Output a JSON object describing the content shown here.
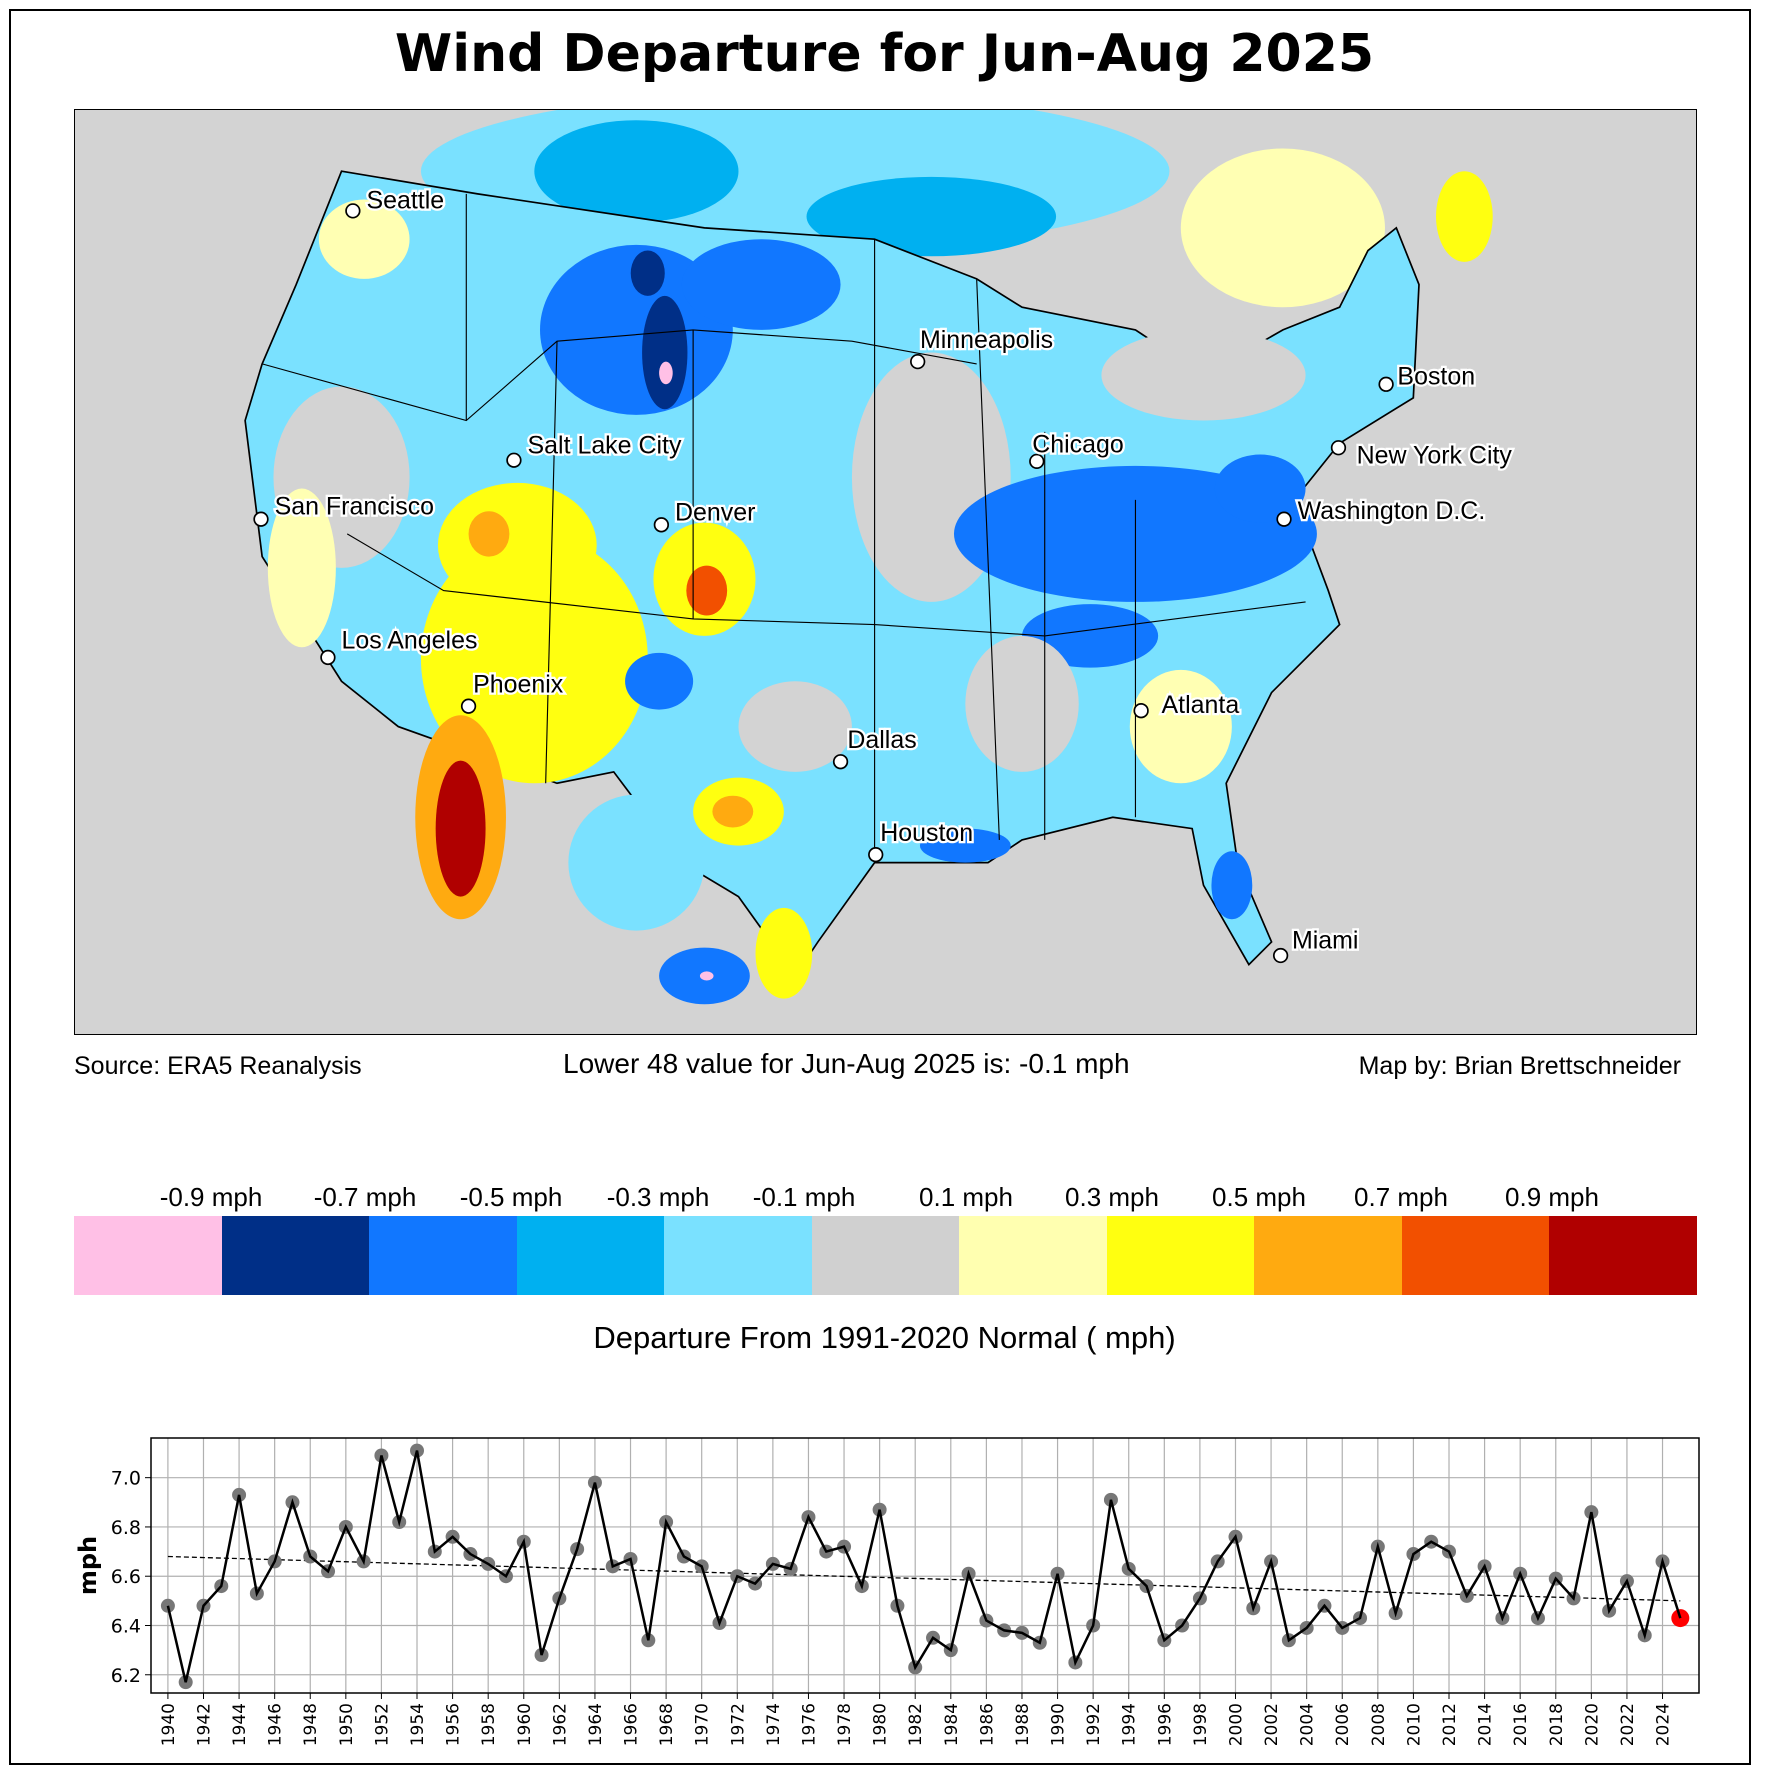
{
  "title": "Wind Departure for Jun-Aug 2025",
  "footer": {
    "source": "Source: ERA5 Reanalysis",
    "summary": "Lower 48 value for Jun-Aug 2025 is: -0.1 mph",
    "credit": "Map by: Brian Brettschneider"
  },
  "cities": [
    "Seattle",
    "San Francisco",
    "Los Angeles",
    "Phoenix",
    "Salt Lake City",
    "Denver",
    "Minneapolis",
    "Chicago",
    "Dallas",
    "Houston",
    "Atlanta",
    "Miami",
    "Washington D.C.",
    "New York City",
    "Boston"
  ],
  "colorbar": {
    "labels": [
      "-0.9 mph",
      "-0.7 mph",
      "-0.5 mph",
      "-0.3 mph",
      "-0.1 mph",
      "0.1 mph",
      "0.3 mph",
      "0.5 mph",
      "0.7 mph",
      "0.9 mph"
    ],
    "colors": [
      "#ffc0e6",
      "#002f87",
      "#1177ff",
      "#00b0f0",
      "#7ae1ff",
      "#d0d0d0",
      "#ffffb0",
      "#ffff10",
      "#ffaa10",
      "#f25000",
      "#b00000"
    ],
    "title": "Departure From 1991-2020 Normal ( mph)"
  },
  "chart_data": {
    "type": "line",
    "title": "",
    "xlabel": "",
    "ylabel": "mph",
    "xlim": [
      1939.05,
      2026.05
    ],
    "ylim": [
      6.126,
      7.161
    ],
    "yticks": [
      "6.2",
      "6.4",
      "6.6",
      "6.8",
      "7.0"
    ],
    "grid": true,
    "x": [
      1940,
      1941,
      1942,
      1943,
      1944,
      1945,
      1946,
      1947,
      1948,
      1949,
      1950,
      1951,
      1952,
      1953,
      1954,
      1955,
      1956,
      1957,
      1958,
      1959,
      1960,
      1961,
      1962,
      1963,
      1964,
      1965,
      1966,
      1967,
      1968,
      1969,
      1970,
      1971,
      1972,
      1973,
      1974,
      1975,
      1976,
      1977,
      1978,
      1979,
      1980,
      1981,
      1982,
      1983,
      1984,
      1985,
      1986,
      1987,
      1988,
      1989,
      1990,
      1991,
      1992,
      1993,
      1994,
      1995,
      1996,
      1997,
      1998,
      1999,
      2000,
      2001,
      2002,
      2003,
      2004,
      2005,
      2006,
      2007,
      2008,
      2009,
      2010,
      2011,
      2012,
      2013,
      2014,
      2015,
      2016,
      2017,
      2018,
      2019,
      2020,
      2021,
      2022,
      2023,
      2024,
      2025
    ],
    "values": [
      6.48,
      6.17,
      6.48,
      6.56,
      6.93,
      6.53,
      6.66,
      6.9,
      6.68,
      6.62,
      6.8,
      6.66,
      7.09,
      6.82,
      7.11,
      6.7,
      6.76,
      6.69,
      6.65,
      6.6,
      6.74,
      6.28,
      6.51,
      6.71,
      6.98,
      6.64,
      6.67,
      6.34,
      6.82,
      6.68,
      6.64,
      6.41,
      6.6,
      6.57,
      6.65,
      6.63,
      6.84,
      6.7,
      6.72,
      6.56,
      6.87,
      6.48,
      6.23,
      6.35,
      6.3,
      6.61,
      6.42,
      6.38,
      6.37,
      6.33,
      6.61,
      6.25,
      6.4,
      6.91,
      6.63,
      6.56,
      6.34,
      6.4,
      6.51,
      6.66,
      6.76,
      6.47,
      6.66,
      6.34,
      6.39,
      6.48,
      6.39,
      6.43,
      6.72,
      6.45,
      6.69,
      6.74,
      6.7,
      6.52,
      6.64,
      6.43,
      6.61,
      6.43,
      6.59,
      6.51,
      6.86,
      6.46,
      6.58,
      6.36,
      6.66,
      6.43
    ],
    "trend": {
      "x": [
        1940,
        2025
      ],
      "values": [
        6.68,
        6.5
      ]
    },
    "highlight": {
      "x": 2025,
      "value": 6.43,
      "color": "#ff0000"
    },
    "marker_color": "#777777",
    "line_color": "#000000"
  }
}
